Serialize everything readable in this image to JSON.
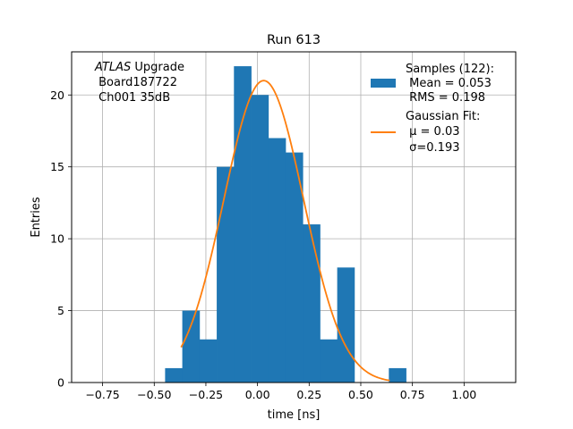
{
  "chart_data": {
    "type": "histogram",
    "title": "Run 613",
    "xlabel": "time [ns]",
    "ylabel": "Entries",
    "xlim": [
      -0.9,
      1.25
    ],
    "ylim": [
      0,
      23
    ],
    "grid": true,
    "xticks": [
      -0.75,
      -0.5,
      -0.25,
      0.0,
      0.25,
      0.5,
      0.75,
      1.0
    ],
    "xtick_labels": [
      "−0.75",
      "−0.50",
      "−0.25",
      "0.00",
      "0.25",
      "0.50",
      "0.75",
      "1.00"
    ],
    "yticks": [
      0,
      5,
      10,
      15,
      20
    ],
    "ytick_labels": [
      "0",
      "5",
      "10",
      "15",
      "20"
    ],
    "bin_width": 0.0833,
    "bins": [
      {
        "x0": -0.4475,
        "count": 1
      },
      {
        "x0": -0.3642,
        "count": 5
      },
      {
        "x0": -0.2808,
        "count": 3
      },
      {
        "x0": -0.1975,
        "count": 15
      },
      {
        "x0": -0.1142,
        "count": 22
      },
      {
        "x0": -0.0308,
        "count": 20
      },
      {
        "x0": 0.0525,
        "count": 17
      },
      {
        "x0": 0.1358,
        "count": 16
      },
      {
        "x0": 0.2192,
        "count": 11
      },
      {
        "x0": 0.3025,
        "count": 3
      },
      {
        "x0": 0.3858,
        "count": 8
      },
      {
        "x0": 0.4692,
        "count": 0
      },
      {
        "x0": 0.5525,
        "count": 0
      },
      {
        "x0": 0.6358,
        "count": 1
      }
    ],
    "fit": {
      "type": "gaussian",
      "amplitude": 21.0,
      "mu": 0.03,
      "sigma": 0.193,
      "x_range": [
        -0.37,
        0.64
      ]
    },
    "annotation": {
      "italic": "ATLAS",
      "line1_rest": " Upgrade",
      "line2": " Board187722",
      "line3": " Ch001 35dB"
    },
    "legend": {
      "position": "top-right",
      "entries": [
        {
          "kind": "patch",
          "lines": [
            "Samples (122):",
            " Mean = 0.053",
            " RMS = 0.198"
          ]
        },
        {
          "kind": "line",
          "lines": [
            "Gaussian Fit:",
            " μ = 0.03",
            " σ=0.193"
          ]
        }
      ]
    },
    "colors": {
      "bars": "#1f77b4",
      "fit": "#ff7f0e",
      "grid": "#b0b0b0",
      "axes": "#000000"
    }
  }
}
